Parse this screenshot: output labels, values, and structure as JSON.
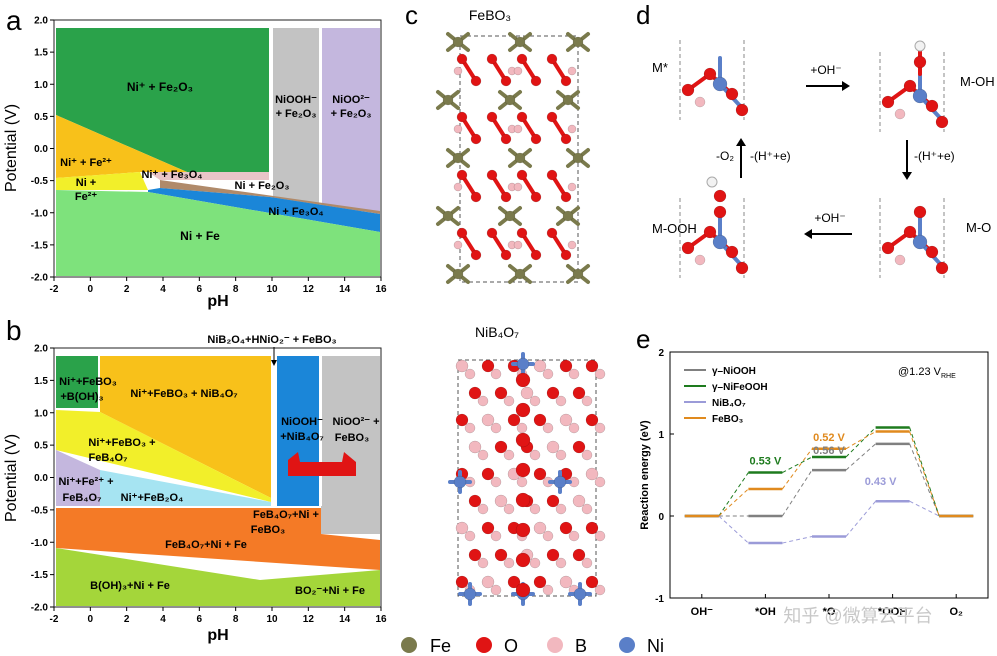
{
  "panels": {
    "a": {
      "letter": "a",
      "xlabel": "pH",
      "ylabel": "Potential (V)",
      "xticks": [
        "-2",
        "0",
        "2",
        "4",
        "6",
        "8",
        "10",
        "12",
        "14",
        "16"
      ],
      "yticks": [
        "2.0",
        "1.5",
        "1.0",
        "0.5",
        "0.0",
        "-0.5",
        "-1.0",
        "-1.5",
        "-2.0"
      ],
      "regions": {
        "ni_fe2o3": "Ni⁺ + Fe₂O₃",
        "niooh_fe2o3_1": "NiOOH⁻",
        "niooh_fe2o3_2": "+ Fe₂O₃",
        "nioo2_fe2o3_1": "NiOO²⁻",
        "nioo2_fe2o3_2": "+ Fe₂O₃",
        "ni_fe2plus": "Ni⁺ + Fe²⁺",
        "ni_plus_1": "Ni +",
        "ni_plus_2": "Fe²⁺",
        "ni_fe3o4_plus": "Ni⁺ + Fe₃O₄",
        "ni_fe2o3_low": "Ni + Fe₂O₃",
        "ni_fe3o4": "Ni + Fe₃O₄",
        "ni_fe": "Ni + Fe"
      }
    },
    "b": {
      "letter": "b",
      "xlabel": "pH",
      "ylabel": "Potential (V)",
      "xticks": [
        "-2",
        "0",
        "2",
        "4",
        "6",
        "8",
        "10",
        "12",
        "14",
        "16"
      ],
      "yticks": [
        "2.0",
        "1.5",
        "1.0",
        "0.5",
        "0.0",
        "-0.5",
        "-1.0",
        "-1.5",
        "-2.0"
      ],
      "top_label": "NiB₂O₄+HNiO₂⁻ + FeBO₃",
      "regions": {
        "r1a": "Ni⁺+FeBO₃",
        "r1b": "+B(OH)₃",
        "r2": "Ni⁺+FeBO₃ + NiB₄O₇",
        "r3a": "Ni⁺+FeBO₃ +",
        "r3b": "FeB₄O₇",
        "r4a": "Ni⁺+Fe²⁺ +",
        "r4b": "FeB₄O₇",
        "r5": "Ni⁺+FeB₂O₄",
        "r6a": "NiOOH⁻",
        "r6b": "+NiB₄O₇",
        "r7a": "NiOO²⁻ +",
        "r7b": "FeBO₃",
        "r8a": "FeB₄O₇+Ni +",
        "r8b": "FeBO₃",
        "r9": "FeB₄O₇+Ni + Fe",
        "r10": "B(OH)₃+Ni + Fe",
        "r11": "BO₂⁻+Ni + Fe"
      }
    },
    "c": {
      "letter": "c",
      "top_title": "FeBO₃",
      "bottom_title": "NiB₄O₇"
    },
    "d": {
      "letter": "d",
      "states": [
        "M*",
        "M-OH",
        "M-O",
        "M-OOH"
      ],
      "steps": [
        "+OH⁻",
        "-(H⁺+e)",
        "+OH⁻",
        "-(H⁺+e)",
        "-O₂"
      ]
    },
    "e": {
      "letter": "e",
      "condition": "@1.23 V",
      "condition_sub": "RHE",
      "ylabel": "Reaction energy (eV)",
      "watermark": "知乎 @微算云平台"
    }
  },
  "legend": {
    "items": [
      {
        "label": "Fe",
        "color": "#7a7a4c"
      },
      {
        "label": "O",
        "color": "#e01414"
      },
      {
        "label": "B",
        "color": "#f2b8bf"
      },
      {
        "label": "Ni",
        "color": "#5a7fc8"
      }
    ]
  },
  "chart_data": {
    "type": "line",
    "title": "",
    "xlabel": "",
    "ylabel": "Reaction energy (eV)",
    "ylim": [
      -1,
      2
    ],
    "yticks": [
      -1,
      0,
      1,
      2
    ],
    "categories": [
      "OH⁻",
      "*OH",
      "*O",
      "*OOH",
      "O₂"
    ],
    "series": [
      {
        "name": "γ–NiOOH",
        "color": "#808080",
        "values": [
          0,
          0,
          0.56,
          0.88,
          0
        ]
      },
      {
        "name": "γ–NiFeOOH",
        "color": "#1e7b1e",
        "values": [
          0,
          0.53,
          0.72,
          1.08,
          0
        ]
      },
      {
        "name": "NiB₄O₇",
        "color": "#9b9bd8",
        "values": [
          0,
          -0.33,
          -0.25,
          0.18,
          0
        ]
      },
      {
        "name": "FeBO₃",
        "color": "#e08a1e",
        "values": [
          0,
          0.33,
          0.82,
          1.03,
          0
        ]
      }
    ],
    "annotations": [
      {
        "text": "0.53 V",
        "color": "#1e7b1e"
      },
      {
        "text": "0.52 V",
        "color": "#e08a1e"
      },
      {
        "text": "0.56 V",
        "color": "#808080"
      },
      {
        "text": "0.43 V",
        "color": "#9b9bd8"
      }
    ],
    "condition": "@1.23 V",
    "condition_sub": "RHE"
  }
}
